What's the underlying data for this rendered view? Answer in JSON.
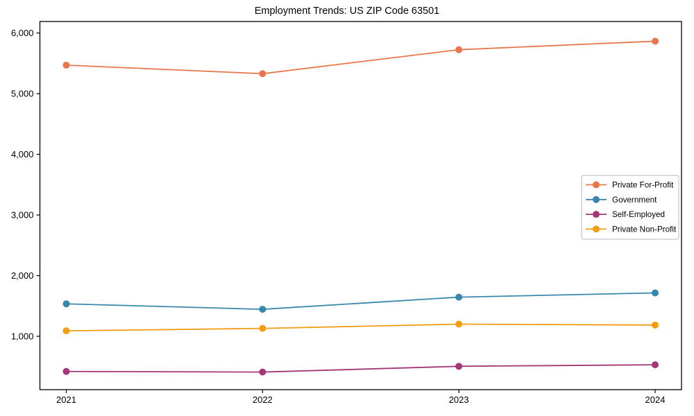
{
  "title": "Employment Trends: US ZIP Code 63501",
  "chart_data": {
    "type": "line",
    "title": "Employment Trends: US ZIP Code 63501",
    "xlabel": "",
    "ylabel": "",
    "x": [
      "2021",
      "2022",
      "2023",
      "2024"
    ],
    "series": [
      {
        "name": "Private For-Profit",
        "color": "#E8764A",
        "values": [
          5470,
          5330,
          5725,
          5865
        ]
      },
      {
        "name": "Government",
        "color": "#3787AD",
        "values": [
          1535,
          1445,
          1645,
          1715
        ]
      },
      {
        "name": "Self-Employed",
        "color": "#A33676",
        "values": [
          420,
          410,
          505,
          530
        ]
      },
      {
        "name": "Private Non-Profit",
        "color": "#F49C12",
        "values": [
          1090,
          1130,
          1200,
          1185
        ]
      }
    ],
    "ylim": [
      120,
      6190
    ],
    "yticks": [
      1000,
      2000,
      3000,
      4000,
      5000,
      6000
    ],
    "grid": false,
    "legend_position": "right",
    "marker": "circle",
    "axis_color": "#000000",
    "legend_border_color": "#b7b7b7"
  }
}
